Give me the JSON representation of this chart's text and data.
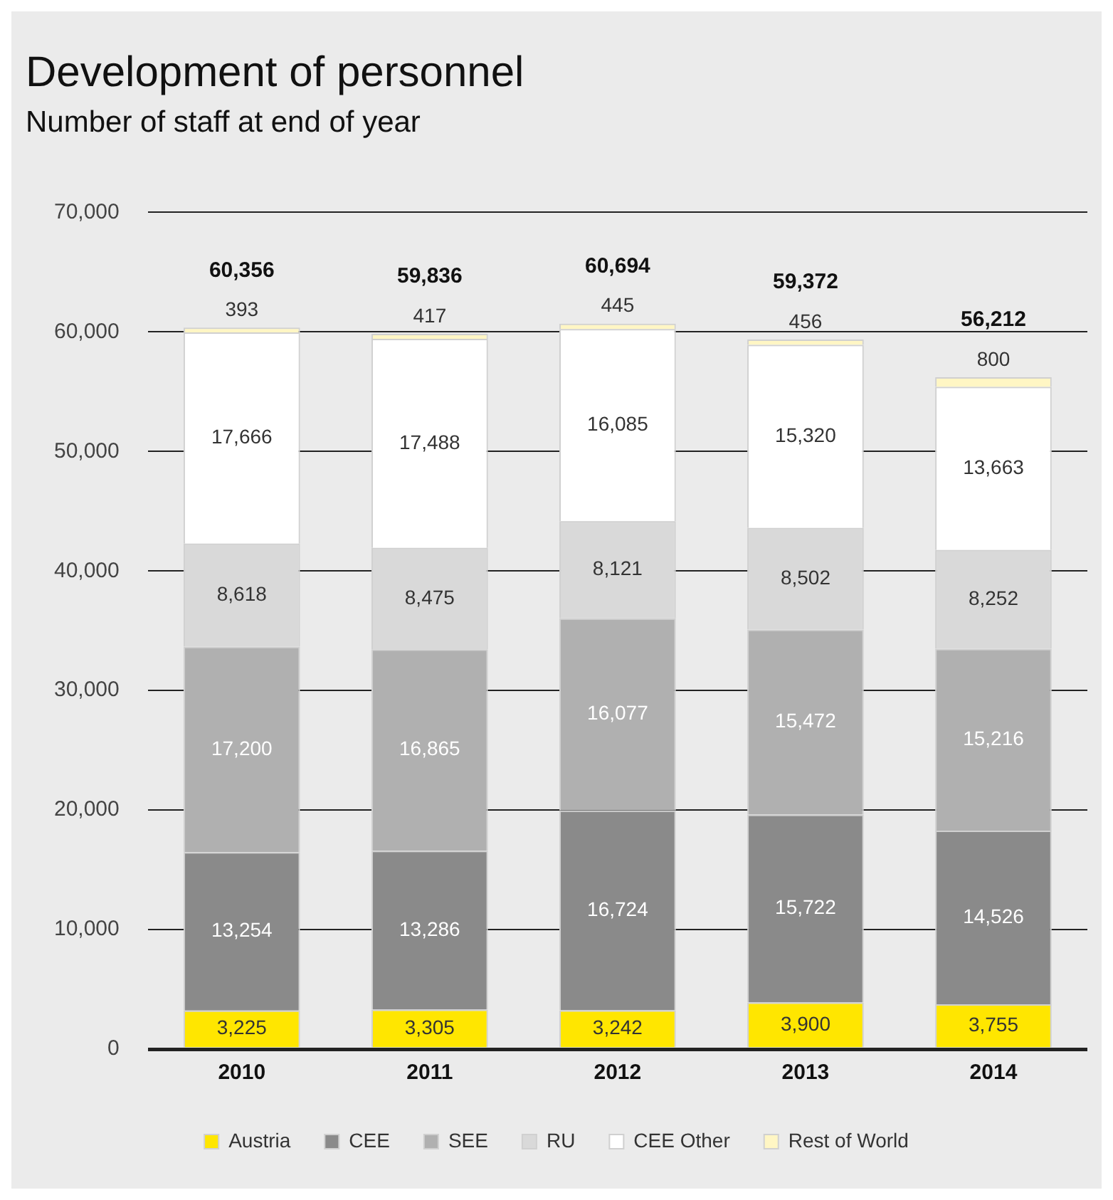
{
  "chart_data": {
    "type": "bar",
    "title": "Development of personnel",
    "subtitle": "Number of staff at end of year",
    "categories": [
      "2010",
      "2011",
      "2012",
      "2013",
      "2014"
    ],
    "series": [
      {
        "name": "Austria",
        "color": "#ffe600",
        "values": [
          3225,
          3305,
          3242,
          3900,
          3755
        ],
        "value_labels": [
          "3,225",
          "3,305",
          "3,242",
          "3,900",
          "3,755"
        ]
      },
      {
        "name": "CEE",
        "color": "#8a8a8a",
        "values": [
          13254,
          13286,
          16724,
          15722,
          14526
        ],
        "value_labels": [
          "13,254",
          "13,286",
          "16,724",
          "15,722",
          "14,526"
        ]
      },
      {
        "name": "SEE",
        "color": "#b0b0b0",
        "values": [
          17200,
          16865,
          16077,
          15472,
          15216
        ],
        "value_labels": [
          "17,200",
          "16,865",
          "16,077",
          "15,472",
          "15,216"
        ]
      },
      {
        "name": "RU",
        "color": "#d9d9d9",
        "values": [
          8618,
          8475,
          8121,
          8502,
          8252
        ],
        "value_labels": [
          "8,618",
          "8,475",
          "8,121",
          "8,502",
          "8,252"
        ]
      },
      {
        "name": "CEE Other",
        "color": "#ffffff",
        "values": [
          17666,
          17488,
          16085,
          15320,
          13663
        ],
        "value_labels": [
          "17,666",
          "17,488",
          "16,085",
          "15,320",
          "13,663"
        ]
      },
      {
        "name": "Rest of World",
        "color": "#fff6c4",
        "values": [
          393,
          417,
          445,
          456,
          800
        ],
        "value_labels": [
          "393",
          "417",
          "445",
          "456",
          "800"
        ]
      }
    ],
    "stacked": true,
    "totals": [
      "60,356",
      "59,836",
      "60,694",
      "59,372",
      "56,212"
    ],
    "ylim": [
      0,
      70000
    ],
    "yticks": [
      0,
      {
        "value": 10000,
        "label": "10,000"
      },
      {
        "value": 20000,
        "label": "20,000"
      },
      {
        "value": 30000,
        "label": "30,000"
      },
      {
        "value": 40000,
        "label": "40,000"
      },
      {
        "value": 50000,
        "label": "50,000"
      },
      {
        "value": 60000,
        "label": "60,000"
      },
      {
        "value": 70000,
        "label": "70,000"
      }
    ],
    "grid": "y",
    "legend": "bottom"
  }
}
